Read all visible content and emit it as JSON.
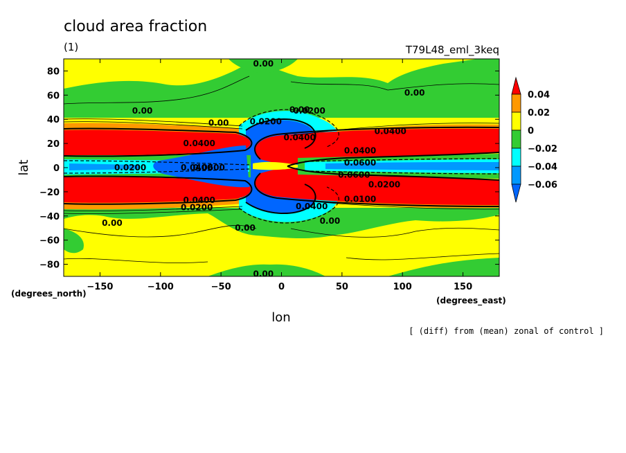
{
  "chart_data": {
    "type": "heatmap",
    "title": "cloud area fraction",
    "subtitle_left": "(1)",
    "subtitle_right": "T79L48_eml_3keq",
    "xlabel": "lon",
    "ylabel": "lat",
    "x_units": "(degrees_east)",
    "y_units": "(degrees_north)",
    "footnote": "[ (diff) from (mean) zonal of control ]",
    "xlim": [
      -180,
      180
    ],
    "ylim": [
      -90,
      90
    ],
    "x_ticks": [
      -150,
      -100,
      -50,
      0,
      50,
      100,
      150
    ],
    "y_ticks": [
      80,
      60,
      40,
      20,
      0,
      -20,
      -40,
      -60,
      -80
    ],
    "colorbar": {
      "levels": [
        0.04,
        0.02,
        0,
        -0.02,
        -0.04,
        -0.06
      ],
      "labels": [
        "0.04",
        "0.02",
        "0",
        "−0.02",
        "−0.04",
        "−0.06"
      ],
      "colors": {
        "gt_0.04": "#ff0000",
        "0.02_to_0.04": "#ff9900",
        "0_to_0.02": "#ffff00",
        "-0.02_to_0": "#33cc33",
        "-0.04_to_-0.02": "#00ffff",
        "-0.06_to_-0.04": "#0099ff",
        "lt_-0.06": "#0066ff"
      }
    },
    "contour_labels": [
      {
        "text": "0.00",
        "lon": -15,
        "lat": 86
      },
      {
        "text": "0.00",
        "lon": 110,
        "lat": 62
      },
      {
        "text": "0.00",
        "lon": -115,
        "lat": 47
      },
      {
        "text": "0.00",
        "lon": 15,
        "lat": 48
      },
      {
        "text": "0.00",
        "lon": -52,
        "lat": 37
      },
      {
        "text": "0.0200",
        "lon": -13,
        "lat": 38
      },
      {
        "text": "0.0200",
        "lon": 23,
        "lat": 47
      },
      {
        "text": "0.0400",
        "lon": 90,
        "lat": 30
      },
      {
        "text": "0.0400",
        "lon": 15,
        "lat": 25
      },
      {
        "text": "0.0400",
        "lon": -68,
        "lat": 20
      },
      {
        "text": "0.0400",
        "lon": 65,
        "lat": 14
      },
      {
        "text": "0.0200",
        "lon": -125,
        "lat": 0
      },
      {
        "text": "0.0400",
        "lon": -70,
        "lat": 0
      },
      {
        "text": "0.0600",
        "lon": -60,
        "lat": 0
      },
      {
        "text": "0.0600",
        "lon": 65,
        "lat": 4
      },
      {
        "text": "0.0600",
        "lon": 60,
        "lat": -6
      },
      {
        "text": "0.0200",
        "lon": 85,
        "lat": -14
      },
      {
        "text": "0.0100",
        "lon": 65,
        "lat": -26
      },
      {
        "text": "0.0400",
        "lon": -68,
        "lat": -27
      },
      {
        "text": "0.0200",
        "lon": -70,
        "lat": -33
      },
      {
        "text": "0.0400",
        "lon": 25,
        "lat": -32
      },
      {
        "text": "0.00",
        "lon": 40,
        "lat": -44
      },
      {
        "text": "0.00",
        "lon": -140,
        "lat": -46
      },
      {
        "text": "0.00",
        "lon": -30,
        "lat": -50
      },
      {
        "text": "0.00",
        "lon": -15,
        "lat": -88
      }
    ]
  }
}
